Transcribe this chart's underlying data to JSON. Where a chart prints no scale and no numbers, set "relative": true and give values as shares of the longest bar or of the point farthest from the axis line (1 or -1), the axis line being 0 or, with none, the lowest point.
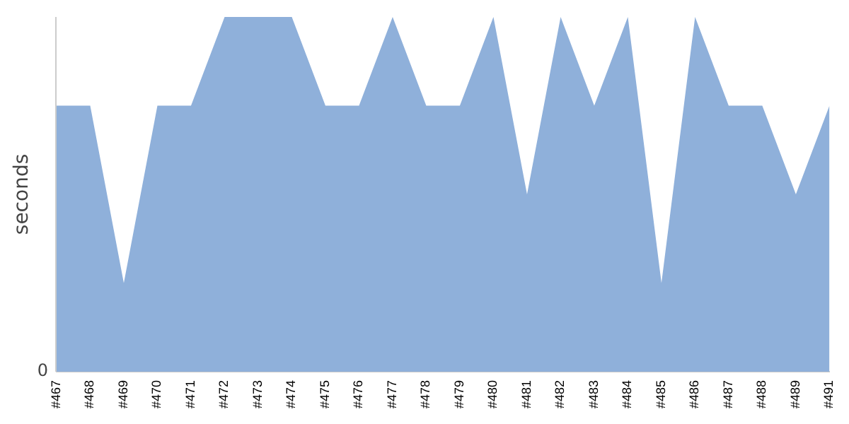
{
  "chart_data": {
    "type": "area",
    "ylabel": "seconds",
    "relative": true,
    "grid": false,
    "legend": false,
    "annotations": [
      "0"
    ],
    "categories": [
      "#467",
      "#468",
      "#469",
      "#470",
      "#471",
      "#472",
      "#473",
      "#474",
      "#475",
      "#476",
      "#477",
      "#478",
      "#479",
      "#480",
      "#481",
      "#482",
      "#483",
      "#484",
      "#485",
      "#486",
      "#487",
      "#488",
      "#489",
      "#491"
    ],
    "series": [
      {
        "color": "#8fb0da",
        "values": [
          0.75,
          0.75,
          0.25,
          0.75,
          0.75,
          1,
          1,
          1,
          0.75,
          0.75,
          1,
          0.75,
          0.75,
          1,
          0.5,
          1,
          0.75,
          1,
          0.25,
          1,
          0.75,
          0.75,
          0.5,
          0.75
        ]
      }
    ]
  }
}
